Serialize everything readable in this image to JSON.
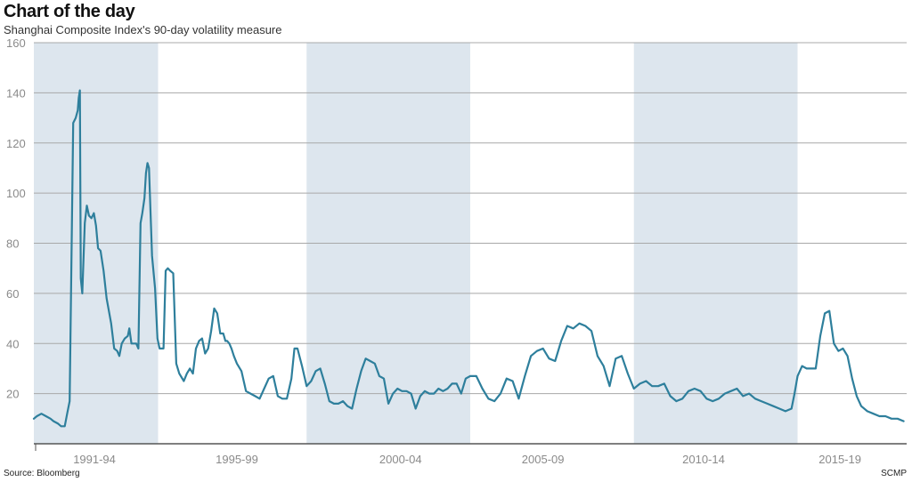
{
  "chart_data": {
    "type": "line",
    "title": "Chart of the day",
    "subtitle": "Shanghai Composite Index's 90-day volatility measure",
    "xlabel": "",
    "ylabel": "",
    "xlim": [
      1991.0,
      2019.8
    ],
    "ylim": [
      0,
      160
    ],
    "yticks": [
      20,
      40,
      60,
      80,
      100,
      120,
      140,
      160
    ],
    "grid": true,
    "colors": {
      "line": "#2e7f9c",
      "band": "#dde6ee",
      "grid": "#a8a8a8",
      "axis": "#555555"
    },
    "period_labels": [
      {
        "label": "1991-94",
        "x": 1993.0
      },
      {
        "label": "1995-99",
        "x": 1997.7
      },
      {
        "label": "2000-04",
        "x": 2003.1
      },
      {
        "label": "2005-09",
        "x": 2007.8
      },
      {
        "label": "2010-14",
        "x": 2013.1
      },
      {
        "label": "2015-19",
        "x": 2017.6
      }
    ],
    "shaded_periods": [
      {
        "start": 1991.0,
        "end": 1995.1
      },
      {
        "start": 2000.0,
        "end": 2005.4
      },
      {
        "start": 2010.8,
        "end": 2016.2
      }
    ],
    "series": [
      {
        "name": "90-day volatility",
        "x": [
          1991.0,
          1991.1,
          1991.25,
          1991.4,
          1991.55,
          1991.65,
          1991.8,
          1991.9,
          1992.02,
          1992.1,
          1992.18,
          1992.3,
          1992.38,
          1992.45,
          1992.48,
          1992.52,
          1992.55,
          1992.6,
          1992.68,
          1992.75,
          1992.82,
          1992.9,
          1992.98,
          1993.05,
          1993.12,
          1993.2,
          1993.3,
          1993.4,
          1993.55,
          1993.65,
          1993.75,
          1993.82,
          1993.9,
          1994.0,
          1994.1,
          1994.15,
          1994.22,
          1994.3,
          1994.38,
          1994.45,
          1994.52,
          1994.58,
          1994.65,
          1994.7,
          1994.75,
          1994.8,
          1994.9,
          1995.0,
          1995.08,
          1995.15,
          1995.22,
          1995.28,
          1995.35,
          1995.42,
          1995.5,
          1995.6,
          1995.7,
          1995.8,
          1995.95,
          1996.05,
          1996.15,
          1996.25,
          1996.35,
          1996.45,
          1996.55,
          1996.65,
          1996.75,
          1996.85,
          1996.95,
          1997.05,
          1997.15,
          1997.25,
          1997.32,
          1997.38,
          1997.45,
          1997.52,
          1997.6,
          1997.7,
          1997.85,
          1998.0,
          1998.15,
          1998.3,
          1998.45,
          1998.6,
          1998.75,
          1998.9,
          1999.05,
          1999.2,
          1999.35,
          1999.5,
          1999.6,
          1999.7,
          1999.85,
          2000.0,
          2000.15,
          2000.3,
          2000.45,
          2000.6,
          2000.75,
          2000.9,
          2001.05,
          2001.2,
          2001.35,
          2001.5,
          2001.65,
          2001.8,
          2001.95,
          2002.1,
          2002.25,
          2002.4,
          2002.55,
          2002.7,
          2002.85,
          2003.0,
          2003.15,
          2003.3,
          2003.45,
          2003.6,
          2003.75,
          2003.9,
          2004.05,
          2004.2,
          2004.35,
          2004.5,
          2004.65,
          2004.8,
          2004.95,
          2005.1,
          2005.25,
          2005.4,
          2005.6,
          2005.8,
          2006.0,
          2006.2,
          2006.4,
          2006.6,
          2006.8,
          2007.0,
          2007.2,
          2007.4,
          2007.6,
          2007.8,
          2008.0,
          2008.2,
          2008.4,
          2008.6,
          2008.8,
          2009.0,
          2009.2,
          2009.4,
          2009.6,
          2009.8,
          2010.0,
          2010.2,
          2010.4,
          2010.6,
          2010.8,
          2011.0,
          2011.2,
          2011.4,
          2011.6,
          2011.8,
          2012.0,
          2012.2,
          2012.4,
          2012.6,
          2012.8,
          2013.0,
          2013.2,
          2013.4,
          2013.6,
          2013.8,
          2014.0,
          2014.2,
          2014.4,
          2014.6,
          2014.8,
          2015.0,
          2015.2,
          2015.4,
          2015.6,
          2015.8,
          2016.0,
          2016.1,
          2016.2,
          2016.35,
          2016.5,
          2016.65,
          2016.8,
          2016.95,
          2017.1,
          2017.25,
          2017.4,
          2017.55,
          2017.7,
          2017.85,
          2018.0,
          2018.15,
          2018.3,
          2018.5,
          2018.7,
          2018.9,
          2019.1,
          2019.3,
          2019.5,
          2019.7
        ],
        "values": [
          10,
          11,
          12,
          11,
          10,
          9,
          8,
          7,
          7,
          12,
          17,
          128,
          130,
          133,
          138,
          141,
          66,
          60,
          88,
          95,
          91,
          90,
          92,
          87,
          78,
          77,
          69,
          58,
          48,
          38,
          37,
          35,
          40,
          42,
          43,
          46,
          40,
          40,
          40,
          38,
          88,
          92,
          98,
          108,
          112,
          110,
          75,
          62,
          42,
          38,
          38,
          38,
          69,
          70,
          69,
          68,
          32,
          28,
          25,
          28,
          30,
          28,
          38,
          41,
          42,
          36,
          38,
          45,
          54,
          52,
          44,
          44,
          41,
          41,
          40,
          38,
          35,
          32,
          29,
          21,
          20,
          19,
          18,
          22,
          26,
          27,
          19,
          18,
          18,
          26,
          38,
          38,
          31,
          23,
          25,
          29,
          30,
          24,
          17,
          16,
          16,
          17,
          15,
          14,
          22,
          29,
          34,
          33,
          32,
          27,
          26,
          16,
          20,
          22,
          21,
          21,
          20,
          14,
          19,
          21,
          20,
          20,
          22,
          21,
          22,
          24,
          24,
          20,
          26,
          27,
          27,
          22,
          18,
          17,
          20,
          26,
          25,
          18,
          27,
          35,
          37,
          38,
          34,
          33,
          41,
          47,
          46,
          48,
          47,
          45,
          35,
          31,
          23,
          34,
          35,
          28,
          22,
          24,
          25,
          23,
          23,
          24,
          19,
          17,
          18,
          21,
          22,
          21,
          18,
          17,
          18,
          20,
          21,
          22,
          19,
          20,
          18,
          17,
          16,
          15,
          14,
          13,
          14,
          20,
          27,
          31,
          30,
          30,
          30,
          43,
          52,
          53,
          40,
          37,
          38,
          35,
          26,
          19,
          15,
          13,
          12,
          11,
          11,
          10,
          10,
          9
        ]
      }
    ]
  },
  "footer": {
    "source": "Source: Bloomberg",
    "credit": "SCMP"
  }
}
